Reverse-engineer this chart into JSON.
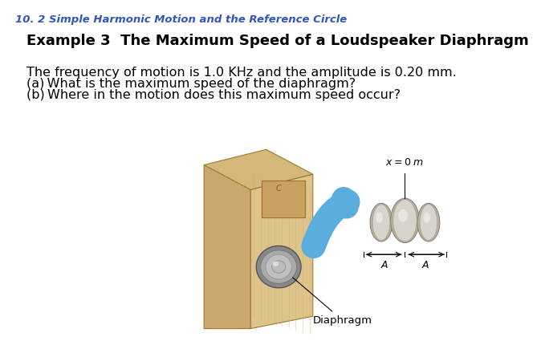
{
  "header": "10. 2 Simple Harmonic Motion and the Reference Circle",
  "header_color": "#3355BB",
  "header_fontsize": 9.5,
  "example_title": "Example 3  The Maximum Speed of a Loudspeaker Diaphragm",
  "example_title_fontsize": 13,
  "body_lines": [
    "The frequency of motion is 1.0 KHz and the amplitude is 0.20 mm.",
    "(a) What is the maximum speed of the diaphragm?",
    "(b) Where in the motion does this maximum speed occur?"
  ],
  "body_fontsize": 11.5,
  "background_color": "#ffffff",
  "wood_front": "#DEC48A",
  "wood_left": "#C9A96E",
  "wood_top": "#D4B87A",
  "wood_edge": "#A07830",
  "wood_grain": "#C8A86A"
}
